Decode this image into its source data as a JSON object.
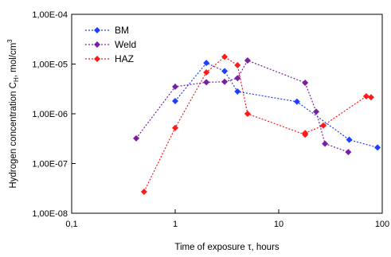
{
  "chart_data": {
    "type": "scatter",
    "title": "",
    "xlabel": "Time of exposure τ, hours",
    "ylabel_main": "Hydrogen concentration C",
    "ylabel_sub": "H",
    "ylabel_unit": ", mol/cm",
    "ylabel_sup": "3",
    "x_scale": "log",
    "y_scale": "log",
    "xlim": [
      0.1,
      100
    ],
    "ylim": [
      1e-08,
      0.0001
    ],
    "x_ticks": [
      0.1,
      1,
      10,
      100
    ],
    "x_tick_labels": [
      "0,1",
      "1",
      "10",
      "100"
    ],
    "y_ticks": [
      1e-08,
      1e-07,
      1e-06,
      1e-05,
      0.0001
    ],
    "y_tick_labels": [
      "1,00E-08",
      "1,00E-07",
      "1,00E-06",
      "1,00E-05",
      "1,00E-04"
    ],
    "grid": false,
    "legend_position": "top-left",
    "series": [
      {
        "name": "BM",
        "color": "#1f3fff",
        "points": [
          [
            1,
            1.8e-06
          ],
          [
            2,
            1.05e-05
          ],
          [
            3,
            7.2e-06
          ],
          [
            4,
            2.8e-06
          ],
          [
            15,
            1.75e-06
          ],
          [
            48,
            3e-07
          ],
          [
            90,
            2.1e-07
          ]
        ]
      },
      {
        "name": "Weld",
        "color": "#7a1fa0",
        "points": [
          [
            0.42,
            3.2e-07
          ],
          [
            1,
            3.5e-06
          ],
          [
            2,
            4.3e-06
          ],
          [
            3,
            4.4e-06
          ],
          [
            4,
            5.2e-06
          ],
          [
            5,
            1.18e-05
          ],
          [
            18,
            4.2e-06
          ],
          [
            23,
            1.1e-06
          ],
          [
            28,
            2.5e-07
          ],
          [
            47,
            1.7e-07
          ]
        ]
      },
      {
        "name": "HAZ",
        "color": "#ff1a1a",
        "points": [
          [
            0.5,
            2.7e-08
          ],
          [
            1,
            5.2e-07
          ],
          [
            2,
            6.8e-06
          ],
          [
            3,
            1.4e-05
          ],
          [
            4,
            9.5e-06
          ],
          [
            5,
            1e-06
          ],
          [
            18,
            3.8e-07
          ],
          [
            18,
            4.1e-07
          ],
          [
            27,
            5.8e-07
          ],
          [
            70,
            2.25e-06
          ],
          [
            78,
            2.15e-06
          ]
        ]
      }
    ]
  }
}
